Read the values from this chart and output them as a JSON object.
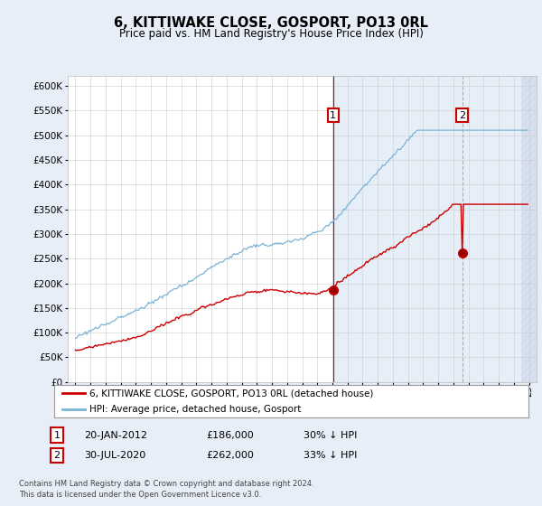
{
  "title": "6, KITTIWAKE CLOSE, GOSPORT, PO13 0RL",
  "subtitle": "Price paid vs. HM Land Registry's House Price Index (HPI)",
  "legend_line1": "6, KITTIWAKE CLOSE, GOSPORT, PO13 0RL (detached house)",
  "legend_line2": "HPI: Average price, detached house, Gosport",
  "annotation1_date": "20-JAN-2012",
  "annotation1_price": "£186,000",
  "annotation1_hpi": "30% ↓ HPI",
  "annotation2_date": "30-JUL-2020",
  "annotation2_price": "£262,000",
  "annotation2_hpi": "33% ↓ HPI",
  "footer": "Contains HM Land Registry data © Crown copyright and database right 2024.\nThis data is licensed under the Open Government Licence v3.0.",
  "hpi_color": "#7ab4d8",
  "price_color": "#cc0000",
  "ann1_x": 2012.05,
  "ann2_x": 2020.58,
  "ann1_price": 186000,
  "ann2_price": 262000,
  "ylim_min": 0,
  "ylim_max": 620000,
  "xlim_min": 1994.5,
  "xlim_max": 2025.5,
  "background_color": "#e8eef7",
  "plot_bg_color": "#ffffff",
  "shade_color": "#dce8f5",
  "hatch_color": "#c8d4e8"
}
